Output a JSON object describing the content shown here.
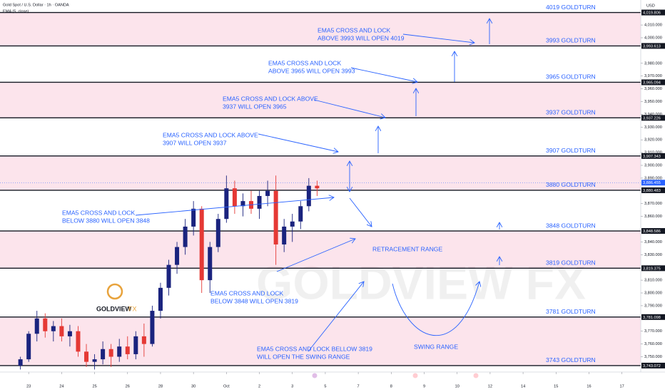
{
  "chart_data": {
    "type": "candlestick",
    "title": "Gold Spot / U.S. Dollar · 1h · OANDA",
    "indicator": "EMA (5, close)",
    "currency": "USD",
    "watermark": "GOLDVIEW FX",
    "logo": [
      "GOLDVIEW",
      "FX"
    ],
    "up_color": "#1a237e",
    "down_color": "#e53935",
    "band_color": "#fce4ec",
    "xlim": [
      -0.87,
      18.57
    ],
    "ylim": [
      3738,
      4029.6
    ],
    "xticks": [
      {
        "value": 0,
        "label": "23"
      },
      {
        "value": 1,
        "label": "24"
      },
      {
        "value": 2,
        "label": "25"
      },
      {
        "value": 3,
        "label": "26"
      },
      {
        "value": 4,
        "label": "28"
      },
      {
        "value": 5,
        "label": "30"
      },
      {
        "value": 6,
        "label": "Oct"
      },
      {
        "value": 7,
        "label": "2"
      },
      {
        "value": 8,
        "label": "3"
      },
      {
        "value": 9,
        "label": "5"
      },
      {
        "value": 10,
        "label": "7"
      },
      {
        "value": 11,
        "label": "8"
      },
      {
        "value": 12,
        "label": "9"
      },
      {
        "value": 13,
        "label": "10"
      },
      {
        "value": 14,
        "label": "12"
      },
      {
        "value": 15,
        "label": "14"
      },
      {
        "value": 16,
        "label": "15"
      },
      {
        "value": 17,
        "label": "16"
      },
      {
        "value": 18,
        "label": "17"
      }
    ],
    "yticks": [
      {
        "value": 4010,
        "label": "4,010.000"
      },
      {
        "value": 4000,
        "label": "4,000.000"
      },
      {
        "value": 3980,
        "label": "3,980.000"
      },
      {
        "value": 3970,
        "label": "3,970.000"
      },
      {
        "value": 3960,
        "label": "3,960.000"
      },
      {
        "value": 3950,
        "label": "3,950.000"
      },
      {
        "value": 3940,
        "label": "3,940.000"
      },
      {
        "value": 3930,
        "label": "3,930.000"
      },
      {
        "value": 3920,
        "label": "3,920.000"
      },
      {
        "value": 3910,
        "label": "3,910.000"
      },
      {
        "value": 3900,
        "label": "3,900.000"
      },
      {
        "value": 3890,
        "label": "3,890.000"
      },
      {
        "value": 3870,
        "label": "3,870.000"
      },
      {
        "value": 3860,
        "label": "3,860.000"
      },
      {
        "value": 3840,
        "label": "3,840.000"
      },
      {
        "value": 3830,
        "label": "3,830.000"
      },
      {
        "value": 3810,
        "label": "3,810.000"
      },
      {
        "value": 3800,
        "label": "3,800.000"
      },
      {
        "value": 3790,
        "label": "3,790.000"
      },
      {
        "value": 3770,
        "label": "3,770.000"
      },
      {
        "value": 3760,
        "label": "3,760.000"
      },
      {
        "value": 3750,
        "label": "3,750.000"
      }
    ],
    "levels": [
      {
        "value": 4019.806,
        "price_label": "4,019.806",
        "label": "4019 GOLDTURN"
      },
      {
        "value": 3993.613,
        "price_label": "3,993.613",
        "label": "3993 GOLDTURN"
      },
      {
        "value": 3965.094,
        "price_label": "3,965.094",
        "label": "3965 GOLDTURN"
      },
      {
        "value": 3937.226,
        "price_label": "3,937.226",
        "label": "3937 GOLDTURN"
      },
      {
        "value": 3907.343,
        "price_label": "3,907.343",
        "label": "3907 GOLDTURN"
      },
      {
        "value": 3880.483,
        "price_label": "3,880.483",
        "label": "3880 GOLDTURN"
      },
      {
        "value": 3848.586,
        "price_label": "3,848.586",
        "label": "3848 GOLDTURN"
      },
      {
        "value": 3819.375,
        "price_label": "3,819.375",
        "label": "3819 GOLDTURN"
      },
      {
        "value": 3781.098,
        "price_label": "3,781.098",
        "label": "3781 GOLDTURN"
      },
      {
        "value": 3743.072,
        "price_label": "3,743.072",
        "label": "3743 GOLDTURN"
      }
    ],
    "last_price": {
      "value": 3886.455,
      "label": "3,886.455"
    },
    "candles": {
      "x": [
        -0.25,
        0,
        0.25,
        0.5,
        0.75,
        1,
        1.25,
        1.5,
        1.75,
        2,
        2.25,
        2.5,
        2.75,
        3,
        3.25,
        3.5,
        3.75,
        4,
        4.25,
        4.5,
        4.75,
        5,
        5.25,
        5.5,
        5.75,
        6,
        6.25,
        6.5,
        6.75,
        7,
        7.25,
        7.5,
        7.75,
        8,
        8.25,
        8.5,
        8.75
      ],
      "open": [
        3743,
        3748,
        3768,
        3780,
        3770,
        3774,
        3766,
        3770,
        3754,
        3746,
        3748,
        3756,
        3750,
        3758,
        3752,
        3766,
        3760,
        3786,
        3804,
        3822,
        3836,
        3852,
        3866,
        3810,
        3836,
        3858,
        3882,
        3868,
        3872,
        3866,
        3876,
        3880,
        3838,
        3852,
        3856,
        3868,
        3884
      ],
      "high": [
        3750,
        3770,
        3786,
        3784,
        3778,
        3780,
        3775,
        3774,
        3760,
        3752,
        3762,
        3760,
        3764,
        3766,
        3770,
        3776,
        3790,
        3808,
        3826,
        3840,
        3858,
        3872,
        3868,
        3840,
        3862,
        3892,
        3888,
        3878,
        3880,
        3880,
        3888,
        3892,
        3858,
        3862,
        3872,
        3890,
        3888
      ],
      "low": [
        3740,
        3746,
        3762,
        3765,
        3762,
        3762,
        3758,
        3750,
        3742,
        3740,
        3744,
        3742,
        3746,
        3748,
        3748,
        3750,
        3758,
        3780,
        3798,
        3815,
        3830,
        3845,
        3800,
        3800,
        3832,
        3855,
        3862,
        3860,
        3862,
        3858,
        3868,
        3822,
        3832,
        3840,
        3850,
        3864,
        3876
      ],
      "close": [
        3748,
        3768,
        3780,
        3770,
        3774,
        3766,
        3770,
        3754,
        3746,
        3748,
        3756,
        3750,
        3758,
        3752,
        3766,
        3760,
        3786,
        3804,
        3822,
        3836,
        3852,
        3866,
        3810,
        3836,
        3858,
        3882,
        3868,
        3872,
        3866,
        3876,
        3880,
        3838,
        3852,
        3856,
        3868,
        3884,
        3882
      ]
    },
    "annotations": [
      {
        "lines": [
          "EMA5 CROSS AND LOCK",
          "ABOVE 3993 WILL OPEN 4019"
        ]
      },
      {
        "lines": [
          "EMA5 CROSS AND LOCK",
          "ABOVE 3965 WILL OPEN 3993"
        ]
      },
      {
        "lines": [
          "EMA5 CROSS AND LOCK ABOVE",
          "3937 WILL OPEN 3965"
        ]
      },
      {
        "lines": [
          "EMA5 CROSS AND LOCK ABOVE",
          "3907 WILL OPEN 3937"
        ]
      },
      {
        "lines": [
          "EMA5 CROSS AND LOCK",
          "BELOW 3880 WILL OPEN 3848"
        ]
      },
      {
        "lines": [
          "EMA5 CROSS AND LOCK",
          "BELOW 3848 WILL OPEN 3819"
        ]
      },
      {
        "lines": [
          "EMA5 CROSS AND LOCK BELLOW 3819",
          "WILL OPEN THE SWING RANGE"
        ]
      },
      {
        "lines": [
          "RETRACEMENT RANGE"
        ]
      },
      {
        "lines": [
          "SWING RANGE"
        ]
      }
    ]
  }
}
